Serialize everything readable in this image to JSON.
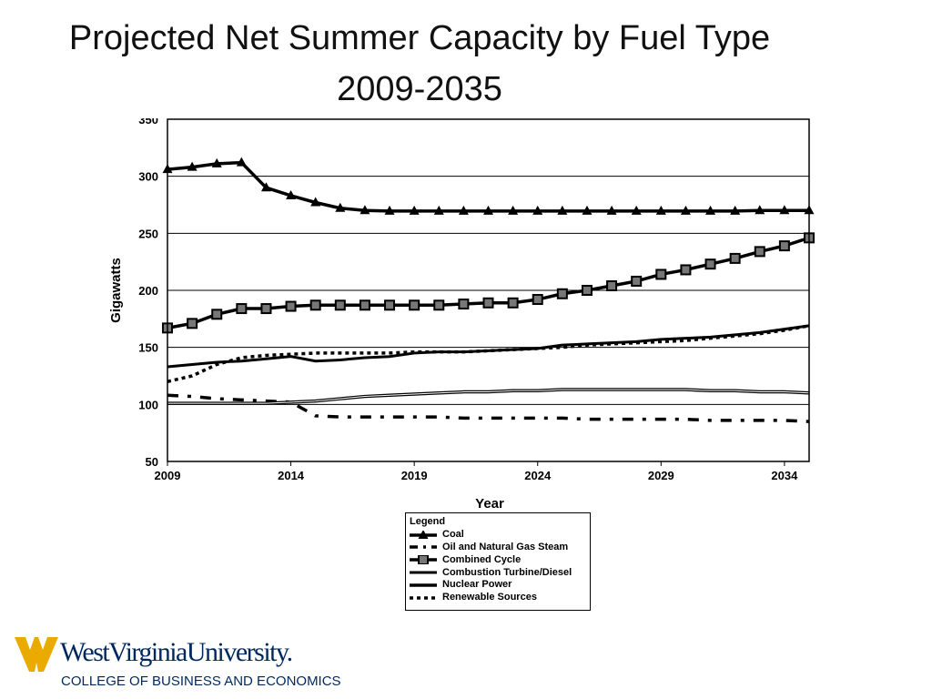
{
  "title_line1": "Projected Net Summer Capacity by Fuel Type",
  "title_line2": "2009-2035",
  "logo": {
    "name": "WestVirginiaUniversity.",
    "subtitle": "COLLEGE OF BUSINESS AND ECONOMICS",
    "colors": {
      "navy": "#00285e",
      "gold": "#eaaa00"
    }
  },
  "chart_data": {
    "type": "line",
    "title": "Projected Net Summer Capacity by Fuel Type 2009-2035",
    "xlabel": "Year",
    "ylabel": "Gigawatts",
    "xlim": [
      2009,
      2035
    ],
    "ylim": [
      50,
      350
    ],
    "xticks": [
      2009,
      2014,
      2019,
      2024,
      2029,
      2034
    ],
    "yticks": [
      50,
      100,
      150,
      200,
      250,
      300,
      350
    ],
    "grid": "horizontal",
    "legend_title": "Legend",
    "legend_position": "bottom-center",
    "x": [
      2009,
      2010,
      2011,
      2012,
      2013,
      2014,
      2015,
      2016,
      2017,
      2018,
      2019,
      2020,
      2021,
      2022,
      2023,
      2024,
      2025,
      2026,
      2027,
      2028,
      2029,
      2030,
      2031,
      2032,
      2033,
      2034,
      2035
    ],
    "series": [
      {
        "name": "Coal",
        "style": "solid-triangle",
        "values": [
          306,
          308,
          311,
          312,
          290,
          283,
          277,
          272,
          270,
          269.5,
          269.5,
          269.5,
          269.5,
          269.5,
          269.5,
          269.5,
          269.5,
          269.5,
          269.5,
          269.5,
          269.5,
          269.5,
          269.5,
          269.5,
          270,
          270,
          270
        ]
      },
      {
        "name": "Oil and Natural Gas Steam",
        "style": "dashdot",
        "values": [
          108,
          107,
          105,
          104,
          103,
          102,
          90,
          89,
          89,
          89,
          89,
          89,
          88,
          88,
          88,
          88,
          88,
          87,
          87,
          87,
          87,
          87,
          86,
          86,
          86,
          86,
          85
        ]
      },
      {
        "name": "Combined Cycle",
        "style": "solid-square",
        "values": [
          167,
          171,
          179,
          184,
          184,
          186,
          187,
          187,
          187,
          187,
          187,
          187,
          188,
          189,
          189,
          192,
          197,
          200,
          204,
          208,
          214,
          218,
          223,
          228,
          234,
          239,
          246
        ]
      },
      {
        "name": "Combustion Turbine/Diesel",
        "style": "solid",
        "values": [
          133,
          135,
          137,
          138,
          140,
          142,
          138,
          139,
          141,
          142,
          145,
          146,
          146,
          147,
          148,
          149,
          152,
          153,
          154,
          155,
          157,
          158,
          159,
          161,
          163,
          166,
          169
        ]
      },
      {
        "name": "Nuclear Power",
        "style": "double",
        "values": [
          101,
          101,
          101,
          101,
          101,
          102,
          103,
          105,
          107,
          108,
          109,
          110,
          111,
          111,
          112,
          112,
          113,
          113,
          113,
          113,
          113,
          113,
          112,
          112,
          111,
          111,
          110
        ]
      },
      {
        "name": "Renewable Sources",
        "style": "dotted",
        "values": [
          120,
          125,
          135,
          141,
          143,
          144,
          145,
          145,
          145,
          145,
          146,
          146,
          146,
          147,
          148,
          149,
          150,
          152,
          153,
          154,
          155,
          156,
          158,
          160,
          162,
          165,
          169
        ]
      }
    ]
  }
}
